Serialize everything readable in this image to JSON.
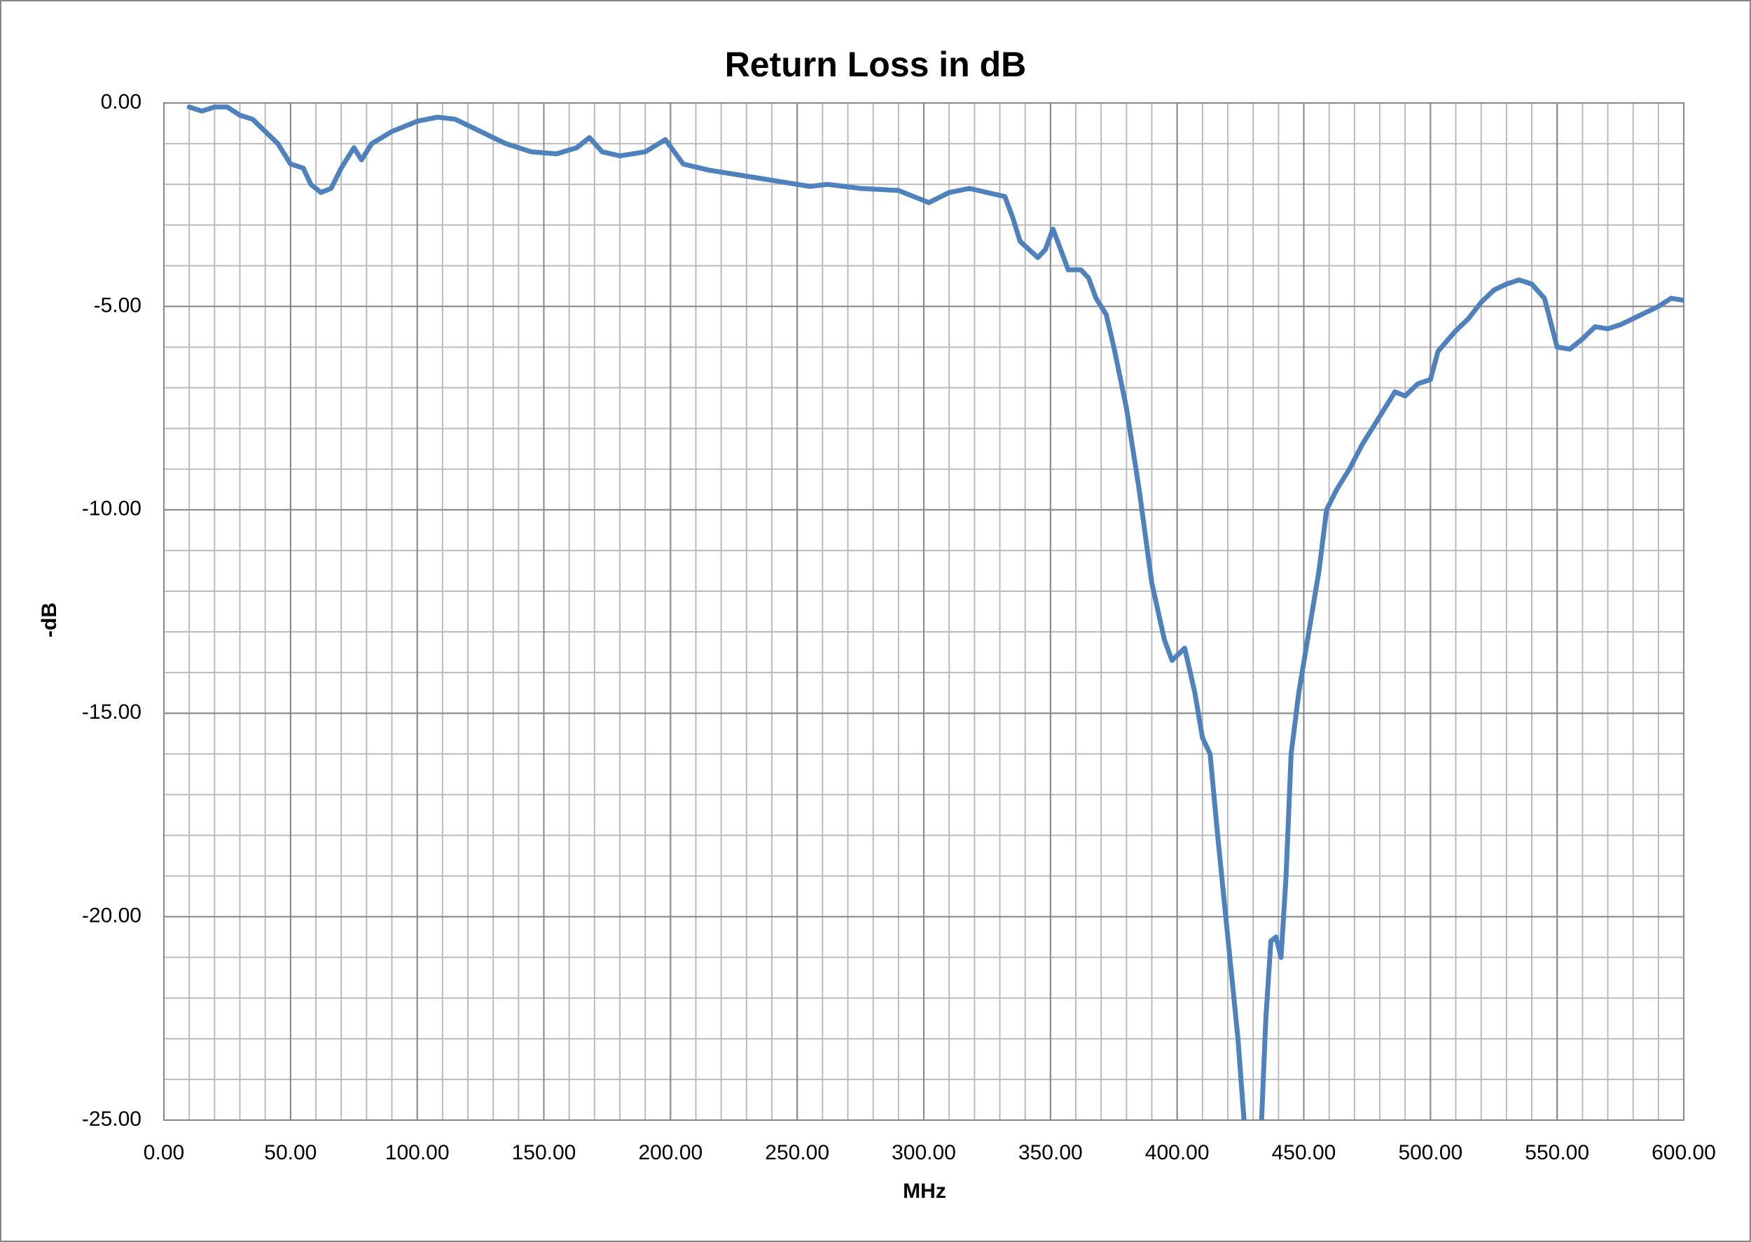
{
  "chart_data": {
    "type": "line",
    "title": "Return Loss in dB",
    "xlabel": "MHz",
    "ylabel": "-dB",
    "color": "#4f81bd",
    "grid": true,
    "minor_grid": {
      "x": 10,
      "y": 1
    },
    "xlim": [
      0,
      600
    ],
    "xticks": [
      {
        "value": 0,
        "label": "0.00"
      },
      {
        "value": 50,
        "label": "50.00"
      },
      {
        "value": 100,
        "label": "100.00"
      },
      {
        "value": 150,
        "label": "150.00"
      },
      {
        "value": 200,
        "label": "200.00"
      },
      {
        "value": 250,
        "label": "250.00"
      },
      {
        "value": 300,
        "label": "300.00"
      },
      {
        "value": 350,
        "label": "350.00"
      },
      {
        "value": 400,
        "label": "400.00"
      },
      {
        "value": 450,
        "label": "450.00"
      },
      {
        "value": 500,
        "label": "500.00"
      },
      {
        "value": 550,
        "label": "550.00"
      },
      {
        "value": 600,
        "label": "600.00"
      }
    ],
    "ylim": [
      -25,
      0
    ],
    "yticks": [
      {
        "value": 0,
        "label": "0.00"
      },
      {
        "value": -5,
        "label": "-5.00"
      },
      {
        "value": -10,
        "label": "-10.00"
      },
      {
        "value": -15,
        "label": "-15.00"
      },
      {
        "value": -20,
        "label": "-20.00"
      },
      {
        "value": -25,
        "label": "-25.00"
      }
    ],
    "x": [
      10,
      15,
      20,
      25,
      30,
      35,
      40,
      45,
      50,
      55,
      58,
      62,
      66,
      70,
      75,
      78,
      82,
      90,
      100,
      108,
      115,
      125,
      135,
      145,
      155,
      163,
      168,
      173,
      180,
      190,
      198,
      205,
      215,
      230,
      245,
      255,
      262,
      275,
      290,
      302,
      310,
      318,
      325,
      332,
      335,
      338,
      345,
      348,
      351,
      354,
      357,
      362,
      365,
      368,
      372,
      375,
      380,
      385,
      390,
      395,
      398,
      403,
      407,
      410,
      413,
      416,
      420,
      424,
      427,
      433,
      435,
      437,
      439,
      441,
      443,
      445,
      448,
      452,
      456,
      459,
      463,
      468,
      473,
      477,
      482,
      486,
      490,
      495,
      500,
      503,
      510,
      515,
      520,
      525,
      530,
      535,
      540,
      545,
      550,
      555,
      560,
      565,
      570,
      575,
      580,
      585,
      590,
      595,
      600
    ],
    "values": [
      -0.1,
      -0.2,
      -0.1,
      -0.1,
      -0.3,
      -0.4,
      -0.7,
      -1.0,
      -1.5,
      -1.6,
      -2.0,
      -2.2,
      -2.1,
      -1.6,
      -1.1,
      -1.4,
      -1.0,
      -0.7,
      -0.45,
      -0.35,
      -0.4,
      -0.7,
      -1.0,
      -1.2,
      -1.25,
      -1.1,
      -0.85,
      -1.2,
      -1.3,
      -1.2,
      -0.9,
      -1.5,
      -1.65,
      -1.8,
      -1.95,
      -2.05,
      -2.0,
      -2.1,
      -2.15,
      -2.45,
      -2.2,
      -2.1,
      -2.2,
      -2.3,
      -2.8,
      -3.4,
      -3.8,
      -3.6,
      -3.1,
      -3.6,
      -4.1,
      -4.1,
      -4.3,
      -4.8,
      -5.2,
      -6.0,
      -7.5,
      -9.5,
      -11.8,
      -13.2,
      -13.7,
      -13.4,
      -14.5,
      -15.6,
      -16.0,
      -18.0,
      -20.5,
      -23.0,
      -25.5,
      -25.5,
      -22.5,
      -20.6,
      -20.5,
      -21.0,
      -19.0,
      -16.0,
      -14.5,
      -13.0,
      -11.5,
      -10.0,
      -9.5,
      -9.0,
      -8.4,
      -8.0,
      -7.5,
      -7.1,
      -7.2,
      -6.9,
      -6.8,
      -6.1,
      -5.6,
      -5.3,
      -4.9,
      -4.6,
      -4.45,
      -4.35,
      -4.45,
      -4.8,
      -6.0,
      -6.05,
      -5.8,
      -5.5,
      -5.55,
      -5.45,
      -5.3,
      -5.15,
      -5.0,
      -4.8,
      -4.85
    ]
  }
}
